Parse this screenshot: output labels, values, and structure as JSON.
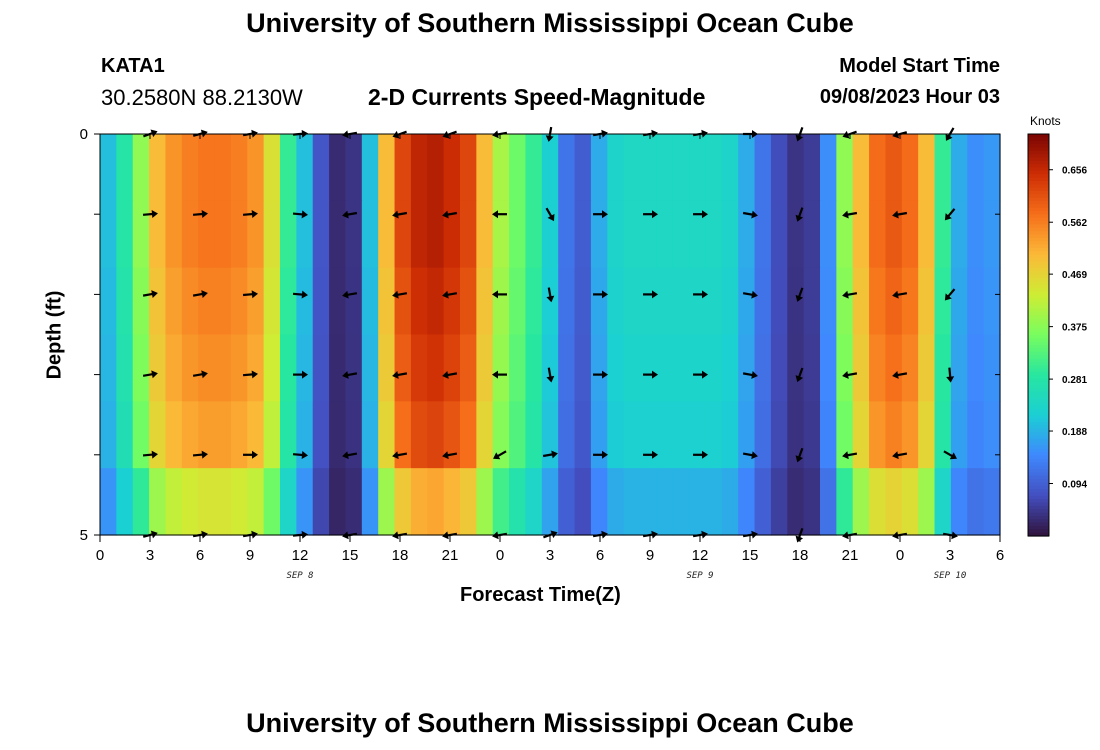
{
  "header": {
    "title": "University of Southern Mississippi Ocean Cube",
    "station": "KATA1",
    "coords": "30.2580N  88.2130W",
    "subtitle": "2-D Currents Speed-Magnitude",
    "model_start_label": "Model Start Time",
    "model_start_value": "09/08/2023 Hour 03"
  },
  "footer": {
    "title": "University of Southern Mississippi Ocean Cube"
  },
  "chart_data": {
    "type": "heatmap",
    "title": "2-D Currents Speed-Magnitude",
    "xlabel": "Forecast Time(Z)",
    "ylabel": "Depth (ft)",
    "x_hours": [
      0,
      54
    ],
    "x_tick_labels": [
      "0",
      "3",
      "6",
      "9",
      "12",
      "15",
      "18",
      "21",
      "0",
      "3",
      "6",
      "9",
      "12",
      "15",
      "18",
      "21",
      "0",
      "3",
      "6"
    ],
    "day_labels": [
      {
        "text": "SEP 8",
        "hour": 12
      },
      {
        "text": "SEP 9",
        "hour": 36
      },
      {
        "text": "SEP 10",
        "hour": 51
      }
    ],
    "y_ticks": [
      0,
      1,
      2,
      3,
      4,
      5
    ],
    "y_tick_labels": [
      "0",
      "",
      "",
      "",
      "",
      "5"
    ],
    "ylim": [
      0,
      5
    ],
    "colorbar": {
      "label": "Knots",
      "min": 0.0,
      "max": 0.72,
      "tick_values": [
        0.656,
        0.562,
        0.469,
        0.375,
        0.281,
        0.188,
        0.094
      ],
      "tick_labels": [
        "0.656",
        "0.562",
        "0.469",
        "0.375",
        "0.281",
        "0.188",
        "0.094"
      ]
    },
    "speed_by_hour": [
      0.2,
      0.28,
      0.38,
      0.5,
      0.54,
      0.56,
      0.57,
      0.57,
      0.56,
      0.54,
      0.45,
      0.3,
      0.2,
      0.08,
      0.03,
      0.04,
      0.2,
      0.5,
      0.62,
      0.66,
      0.67,
      0.65,
      0.62,
      0.5,
      0.4,
      0.35,
      0.3,
      0.22,
      0.12,
      0.09,
      0.18,
      0.23,
      0.24,
      0.24,
      0.24,
      0.24,
      0.24,
      0.24,
      0.23,
      0.18,
      0.12,
      0.07,
      0.04,
      0.05,
      0.15,
      0.38,
      0.5,
      0.58,
      0.6,
      0.58,
      0.5,
      0.3,
      0.18,
      0.15,
      0.16
    ],
    "depth_factors": [
      1.0,
      1.0,
      0.98,
      0.96,
      0.93,
      0.78
    ],
    "arrow_hours": [
      3,
      6,
      9,
      12,
      15,
      18,
      21,
      24,
      27,
      30,
      33,
      36,
      39,
      42,
      45,
      48,
      51
    ],
    "arrow_depths": [
      0,
      1,
      2,
      3,
      4,
      5
    ],
    "arrow_direction_deg": [
      [
        70,
        75,
        80,
        85,
        260,
        250,
        250,
        260,
        190,
        80,
        80,
        80,
        90,
        200,
        250,
        255,
        210
      ],
      [
        85,
        85,
        85,
        95,
        260,
        260,
        260,
        270,
        150,
        90,
        90,
        90,
        100,
        200,
        260,
        260,
        220
      ],
      [
        80,
        80,
        85,
        95,
        260,
        260,
        260,
        270,
        170,
        90,
        90,
        90,
        100,
        200,
        260,
        260,
        220
      ],
      [
        80,
        80,
        85,
        90,
        260,
        260,
        260,
        270,
        170,
        90,
        90,
        90,
        100,
        200,
        260,
        260,
        175
      ],
      [
        85,
        85,
        90,
        95,
        260,
        260,
        260,
        240,
        80,
        90,
        90,
        90,
        100,
        200,
        260,
        260,
        120
      ],
      [
        75,
        80,
        80,
        85,
        260,
        260,
        260,
        260,
        70,
        80,
        80,
        80,
        80,
        200,
        260,
        260,
        100
      ]
    ]
  }
}
